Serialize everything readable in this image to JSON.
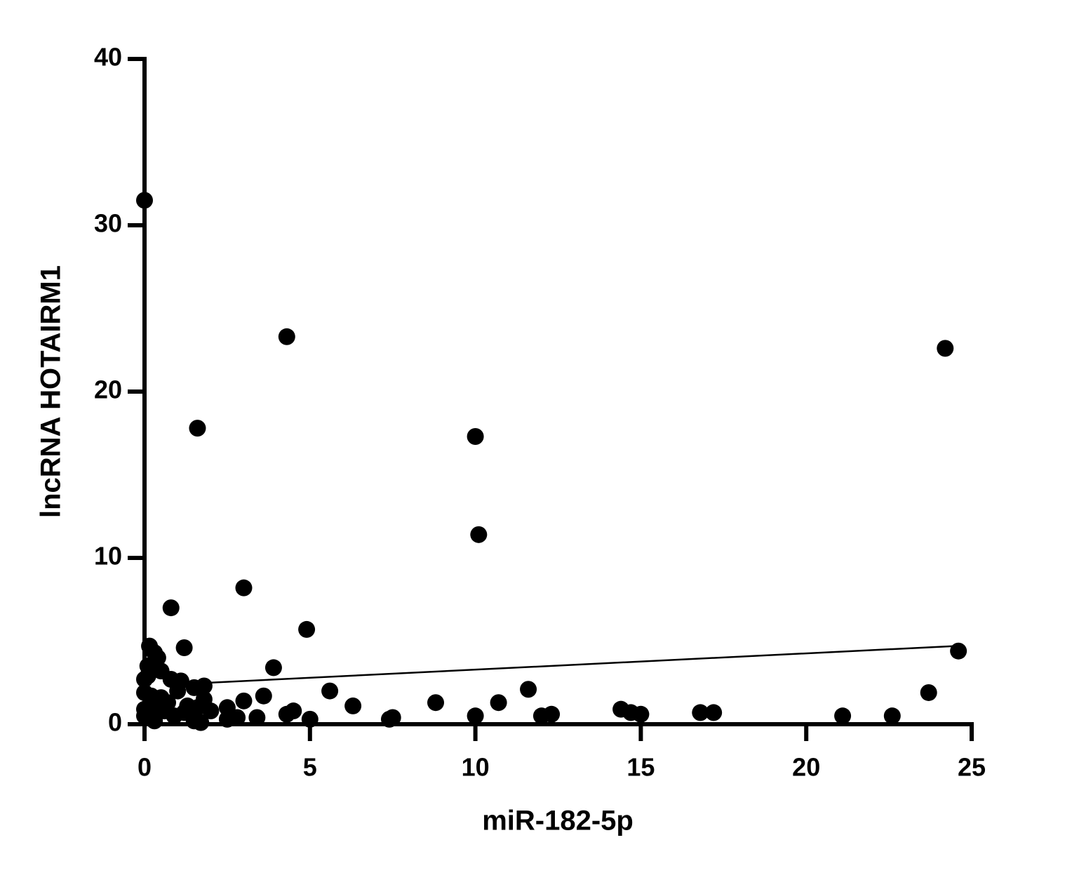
{
  "chart_data": {
    "type": "scatter",
    "x_label": "miR-182-5p",
    "y_label": "lncRNA HOTAIRM1",
    "color": "#000000",
    "xlim": [
      0,
      25
    ],
    "ylim": [
      0,
      40
    ],
    "xticks": [
      0,
      5,
      10,
      15,
      20,
      25
    ],
    "yticks": [
      0,
      10,
      20,
      30,
      40
    ],
    "x": [
      0,
      4.3,
      24.2,
      1.6,
      10,
      10.1,
      3,
      0.8,
      4.9,
      1.2,
      24.6,
      0.15,
      0.3,
      0.4,
      0.1,
      0.3,
      0.5,
      0,
      0.8,
      1.1,
      3.9,
      0.1,
      1.8,
      1.5,
      1,
      0,
      0.2,
      0.5,
      1.8,
      3.6,
      5.6,
      11.6,
      23.7,
      0.7,
      0.3,
      3,
      2.5,
      1.3,
      1.6,
      2,
      0,
      0.6,
      0.2,
      6.3,
      8.8,
      10.7,
      14.4,
      14.7,
      15,
      16.8,
      17.2,
      12.3,
      12,
      4.5,
      4.3,
      10,
      21.1,
      22.6,
      3.4,
      2.8,
      2.5,
      5,
      7.4,
      7.5,
      1.7,
      1.5,
      0.3,
      0.9,
      1.2,
      0
    ],
    "y": [
      31.5,
      23.3,
      22.6,
      17.8,
      17.3,
      11.4,
      8.2,
      7,
      5.7,
      4.6,
      4.4,
      4.7,
      4.3,
      4,
      3.5,
      3.3,
      3.2,
      2.7,
      2.7,
      2.6,
      3.4,
      2.9,
      2.3,
      2.2,
      2,
      1.9,
      1.7,
      1.6,
      1.5,
      1.7,
      2,
      2.1,
      1.9,
      1.3,
      1.2,
      1.4,
      1,
      1.1,
      1,
      0.8,
      0.9,
      0.8,
      0.6,
      1.1,
      1.3,
      1.3,
      0.9,
      0.7,
      0.6,
      0.7,
      0.7,
      0.6,
      0.5,
      0.8,
      0.6,
      0.5,
      0.5,
      0.5,
      0.4,
      0.4,
      0.3,
      0.3,
      0.3,
      0.4,
      0.1,
      0.2,
      0.2,
      0.5,
      0.7,
      0.5
    ],
    "fit": {
      "x": [
        2,
        24.5
      ],
      "y": [
        2.5,
        4.7
      ]
    }
  }
}
